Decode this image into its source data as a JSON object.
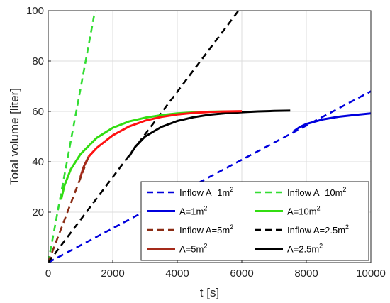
{
  "chart_data": {
    "type": "line",
    "xlabel": "t [s]",
    "ylabel": "Total volume [liter]",
    "xlim": [
      0,
      10000
    ],
    "ylim": [
      0,
      100
    ],
    "xticks": [
      0,
      2000,
      4000,
      6000,
      8000,
      10000
    ],
    "yticks": [
      20,
      40,
      60,
      80,
      100
    ],
    "xtick_labels": [
      "0",
      "2000",
      "4000",
      "6000",
      "8000",
      "10000"
    ],
    "ytick_labels": [
      "20",
      "40",
      "60",
      "80",
      "100"
    ],
    "grid": true,
    "legend_position": "bottom-right",
    "series": [
      {
        "name": "Inflow A=1m2",
        "label_main": "Inflow A=1m",
        "label_sup": "2",
        "color": "#0000dd",
        "style": "dashed",
        "x": [
          0,
          10000
        ],
        "y": [
          0,
          68
        ]
      },
      {
        "name": "A=1m2",
        "label_main": "A=1m",
        "label_sup": "2",
        "color": "#0000dd",
        "style": "solid",
        "x": [
          7600,
          7800,
          8000,
          8500,
          9000,
          9500,
          10000
        ],
        "y": [
          52,
          53.8,
          55,
          56.8,
          57.9,
          58.6,
          59.2
        ]
      },
      {
        "name": "Inflow A=5m2",
        "label_main": "Inflow A=5m",
        "label_sup": "2",
        "color": "#8b2c14",
        "style": "dashed",
        "x": [
          0,
          1250
        ],
        "y": [
          0,
          42
        ]
      },
      {
        "name": "A=5m2",
        "label_main": "A=5m",
        "label_sup": "2",
        "color": "#a52a1a",
        "style": "solid",
        "x": [
          1000,
          1100,
          1250
        ],
        "y": [
          34,
          38,
          42
        ]
      },
      {
        "name": "Inflow A=10m2",
        "label_main": "Inflow A=10m",
        "label_sup": "2",
        "color": "#33dd33",
        "style": "dashed",
        "x": [
          0,
          1450
        ],
        "y": [
          0,
          100
        ]
      },
      {
        "name": "A=10m2",
        "label_main": "A=10m",
        "label_sup": "2",
        "color": "#33dd11",
        "style": "solid",
        "x": [
          400,
          500,
          700,
          1000,
          1500,
          2000,
          2500,
          3000,
          3500,
          4000,
          4500,
          5000,
          5500
        ],
        "y": [
          25,
          30.5,
          37,
          43,
          49.5,
          53.5,
          56,
          57.5,
          58.5,
          59.2,
          59.6,
          59.9,
          60
        ]
      },
      {
        "name": "Inflow A=2.5m2",
        "label_main": "Inflow A=2.5m",
        "label_sup": "2",
        "color": "#000000",
        "style": "dashed",
        "x": [
          0,
          5900
        ],
        "y": [
          0,
          100
        ]
      },
      {
        "name": "A=2.5m2",
        "label_main": "A=2.5m",
        "label_sup": "2",
        "color": "#000000",
        "style": "solid",
        "x": [
          2500,
          2700,
          3000,
          3500,
          4000,
          4500,
          5000,
          5500,
          6000,
          6500,
          7000,
          7500
        ],
        "y": [
          42,
          46,
          50,
          53.8,
          56.2,
          57.7,
          58.7,
          59.3,
          59.7,
          60,
          60.2,
          60.3
        ]
      },
      {
        "name": "Red outflow curve",
        "color": "#ff1111",
        "style": "solid",
        "x": [
          1250,
          1500,
          2000,
          2500,
          3000,
          3500,
          4000,
          4500,
          5000,
          5500,
          6000
        ],
        "y": [
          42,
          45.5,
          50.5,
          54,
          56.3,
          57.8,
          58.8,
          59.4,
          59.8,
          60,
          60.1
        ]
      }
    ],
    "legend_order": [
      "Inflow A=1m2",
      "Inflow A=10m2",
      "A=1m2",
      "A=10m2",
      "Inflow A=5m2",
      "Inflow A=2.5m2",
      "A=5m2",
      "A=2.5m2"
    ]
  }
}
